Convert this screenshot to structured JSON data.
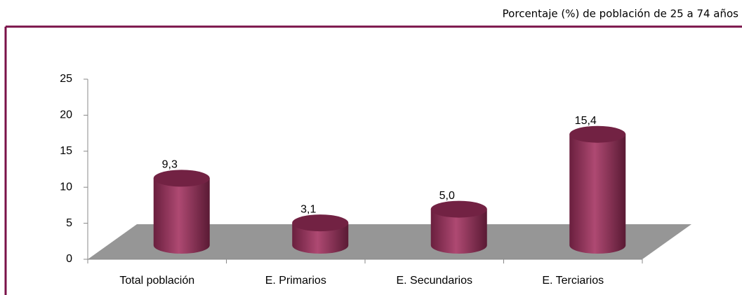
{
  "chart_data": {
    "type": "bar3d",
    "title": "Porcentaje (%) de población de 25 a 74 años",
    "categories": [
      "Total población",
      "E. Primarios",
      "E. Secundarios",
      "E. Terciarios"
    ],
    "values": [
      9.3,
      3.1,
      5.0,
      15.4
    ],
    "value_labels": [
      "9,3",
      "3,1",
      "5,0",
      "15,4"
    ],
    "color": "#a3305f",
    "ylim": [
      0,
      25
    ],
    "yticks": [
      0,
      5,
      10,
      15,
      20,
      25
    ]
  }
}
